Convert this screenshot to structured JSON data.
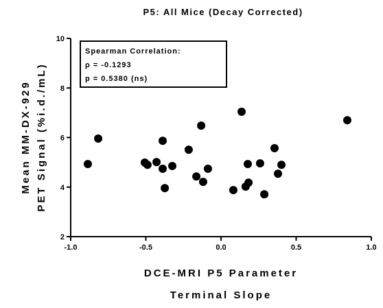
{
  "chart_data": {
    "type": "scatter",
    "title": "P5: All Mice (Decay Corrected)",
    "xlabel": [
      "DCE-MRI P5 Parameter",
      "Terminal Slope"
    ],
    "ylabel": [
      "Mean MM-DX-929",
      "PET Signal (%i.d./mL)"
    ],
    "annotation": [
      "Spearman Correlation:",
      "ρ = -0.1293",
      "p = 0.5380 (ns)"
    ],
    "color": "#000000",
    "series": [
      {
        "name": "All Mice",
        "color": "#000000",
        "x": [
          -0.886,
          -0.817,
          -0.507,
          -0.489,
          -0.429,
          -0.388,
          -0.388,
          -0.374,
          -0.324,
          -0.215,
          -0.164,
          -0.132,
          -0.119,
          -0.087,
          0.082,
          0.137,
          0.164,
          0.178,
          0.183,
          0.26,
          0.288,
          0.356,
          0.379,
          0.402,
          0.84
        ],
        "values": [
          4.93,
          5.96,
          4.99,
          4.9,
          5.01,
          5.87,
          4.74,
          3.96,
          4.85,
          5.51,
          4.43,
          6.48,
          4.21,
          4.74,
          3.88,
          7.04,
          4.02,
          4.93,
          4.18,
          4.96,
          3.71,
          5.57,
          4.54,
          4.9,
          6.7
        ]
      }
    ],
    "xlim": [
      -1.0,
      1.0
    ],
    "xticks": [
      {
        "value": -1.0,
        "label": "-1.0"
      },
      {
        "value": -0.5,
        "label": "-0.5"
      },
      {
        "value": 0,
        "label": "0.0"
      },
      {
        "value": 0.5,
        "label": "0.5"
      },
      {
        "value": 1.0,
        "label": "1.0"
      }
    ],
    "ylim": [
      2,
      10
    ],
    "yticks": [
      2,
      4,
      6,
      8,
      10
    ]
  }
}
